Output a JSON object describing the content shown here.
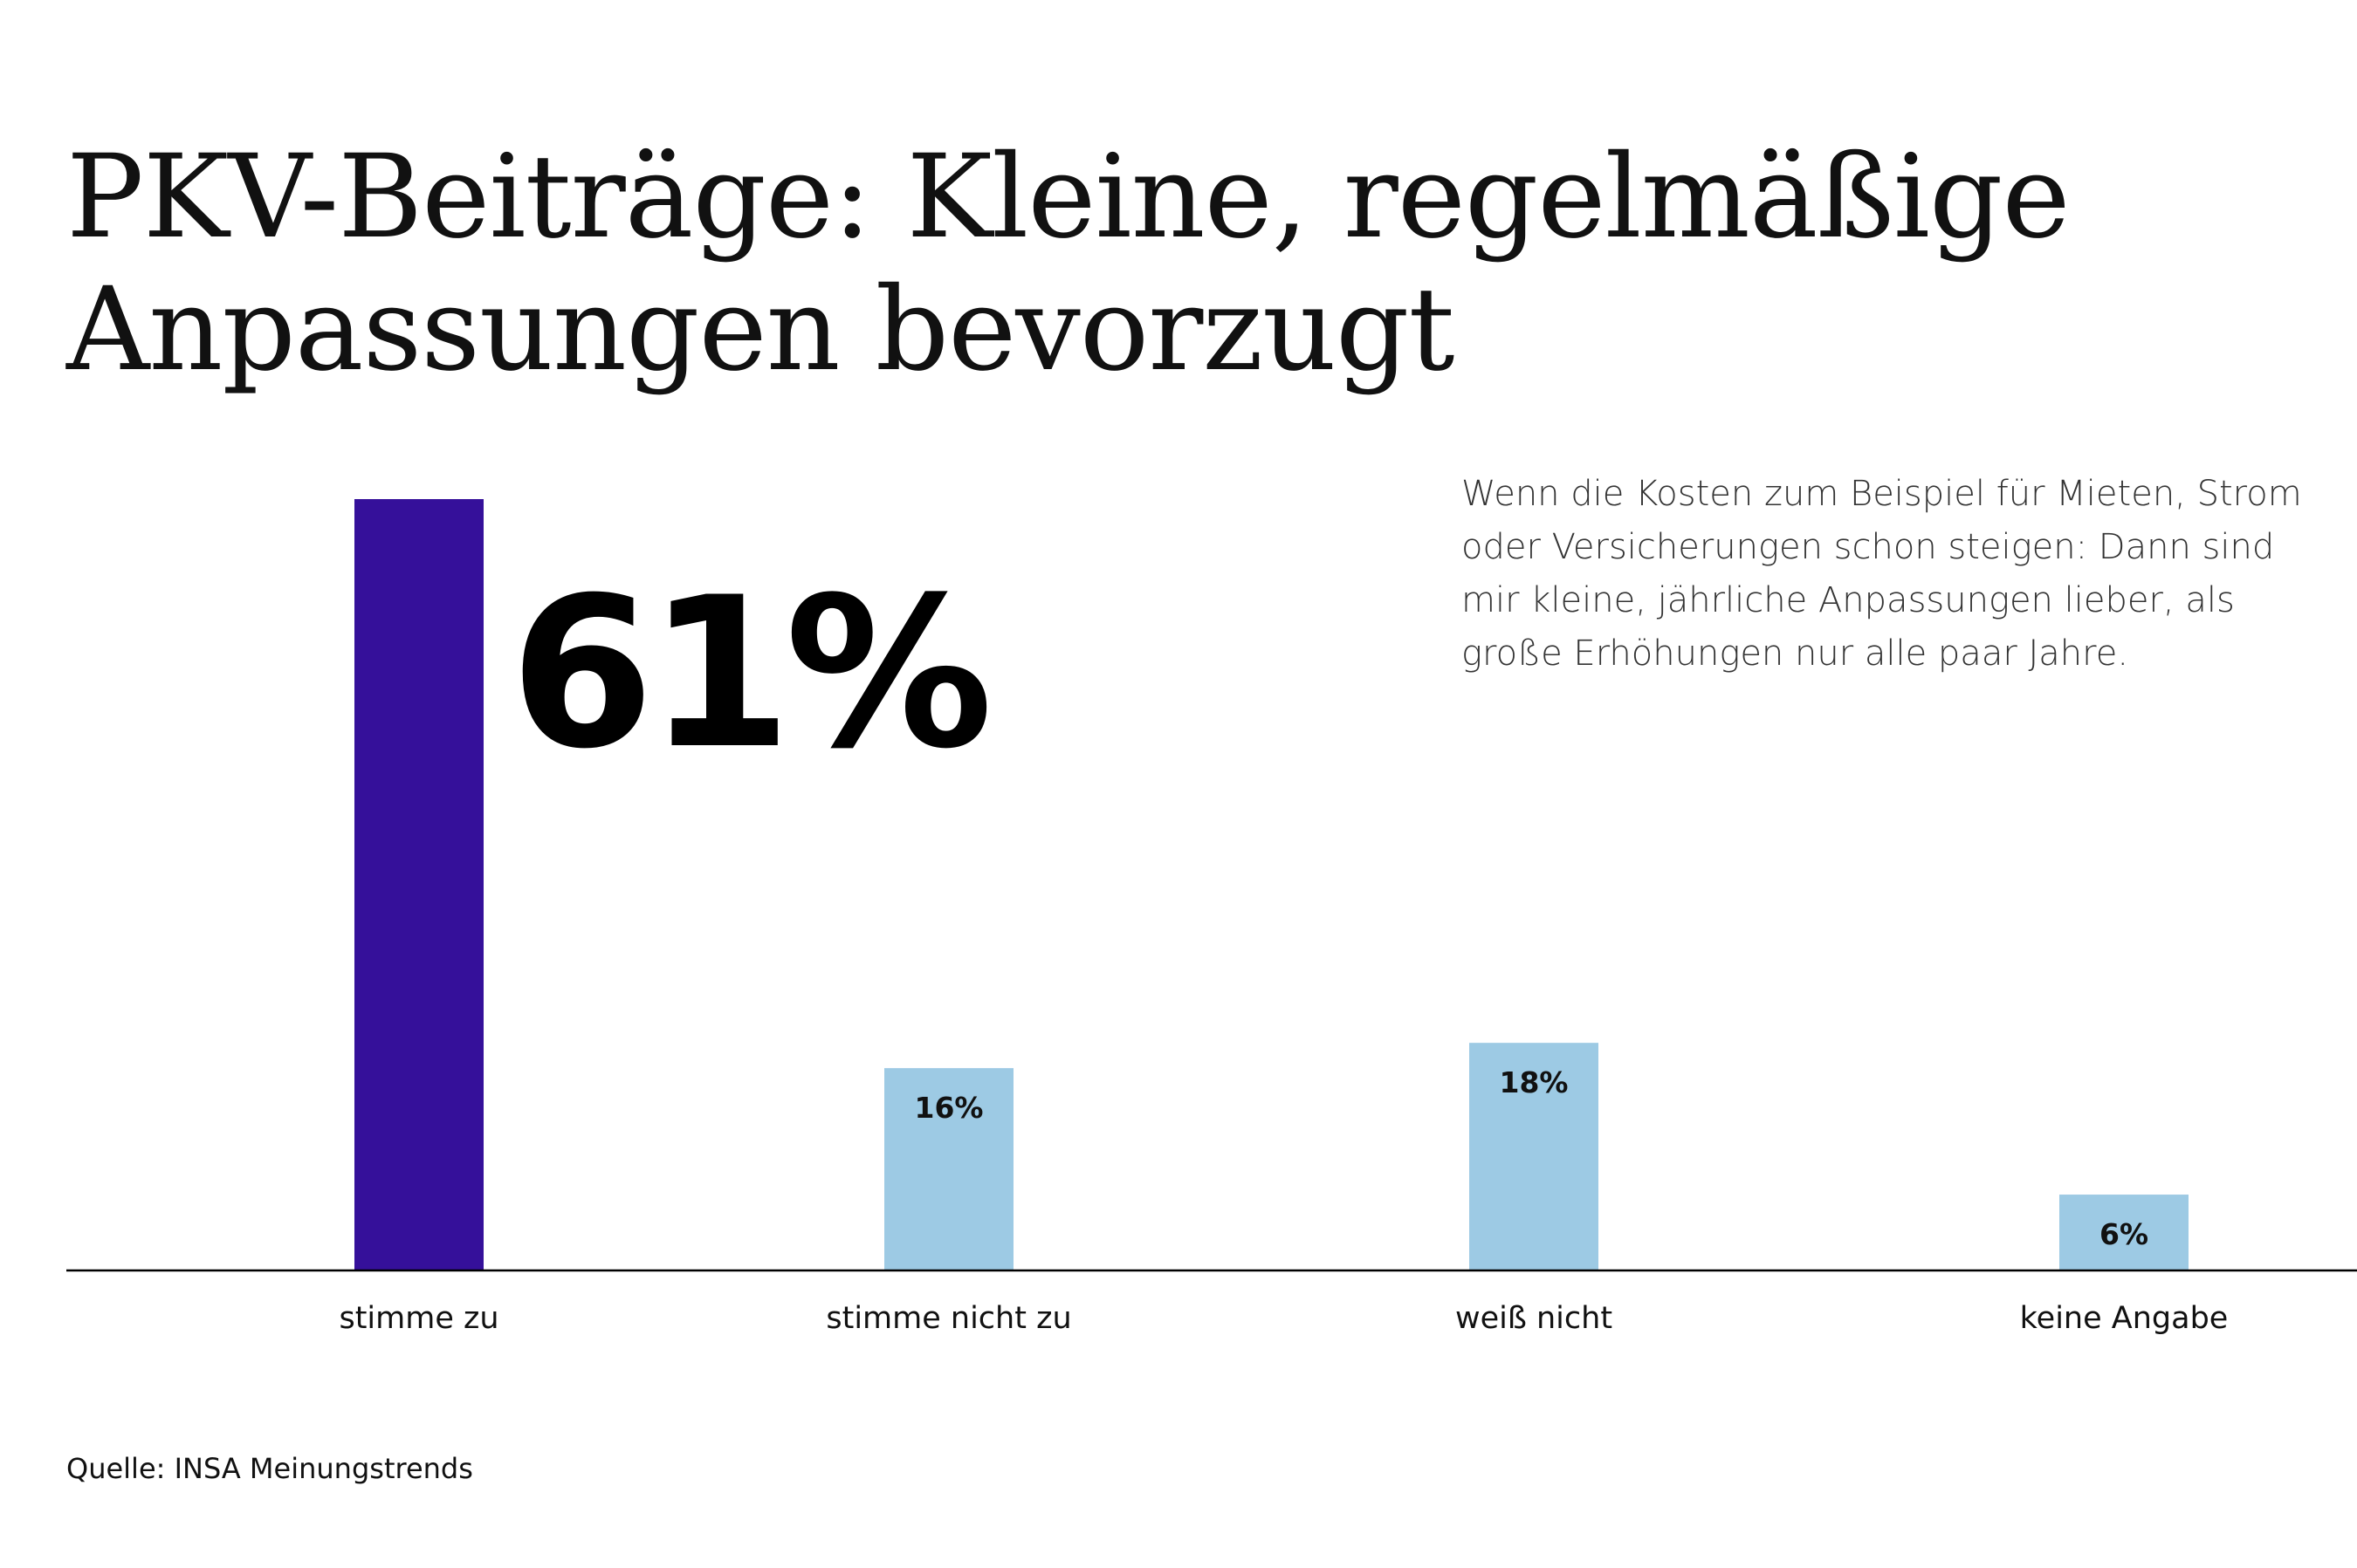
{
  "title": "PKV-Beiträge: Kleine, regelmäßige Anpassungen bevorzugt",
  "question": "Wenn die Kosten zum Beispiel für Mieten, Strom oder Versicherungen schon steigen: Dann sind mir kleine, jährliche Anpassungen lieber, als große Erhöhungen nur alle paar Jahre.",
  "source": "Quelle: INSA Meinungstrends",
  "colors": {
    "highlight": "#35109a",
    "bar": "#9dcae4",
    "axis": "#000000",
    "text": "#111111"
  },
  "chart_data": {
    "type": "bar",
    "categories": [
      "stimme zu",
      "stimme nicht zu",
      "weiß nicht",
      "keine Angabe"
    ],
    "values": [
      61,
      16,
      18,
      6
    ],
    "value_labels": [
      "61%",
      "16%",
      "18%",
      "6%"
    ],
    "unit": "%",
    "ylim": [
      0,
      61
    ],
    "highlight_index": 0,
    "grid": false,
    "legend": "none",
    "xlabel": "",
    "ylabel": ""
  }
}
